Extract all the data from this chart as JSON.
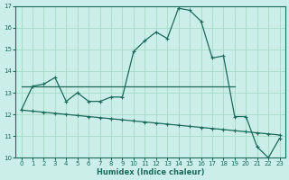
{
  "xlabel": "Humidex (Indice chaleur)",
  "bg_color": "#cceee8",
  "grid_color": "#aaddcc",
  "line_color": "#1a6b5a",
  "xlim": [
    -0.5,
    23.5
  ],
  "ylim": [
    10,
    17
  ],
  "yticks": [
    10,
    11,
    12,
    13,
    14,
    15,
    16,
    17
  ],
  "xticks": [
    0,
    1,
    2,
    3,
    4,
    5,
    6,
    7,
    8,
    9,
    10,
    11,
    12,
    13,
    14,
    15,
    16,
    17,
    18,
    19,
    20,
    21,
    22,
    23
  ],
  "series1_x": [
    0,
    1,
    2,
    3,
    4,
    5,
    6,
    7,
    8,
    9,
    10,
    11,
    12,
    13,
    14,
    15,
    16,
    17,
    18,
    19,
    20,
    21,
    22,
    23
  ],
  "series1_y": [
    12.2,
    13.3,
    13.4,
    13.7,
    12.6,
    13.0,
    12.6,
    12.6,
    12.8,
    12.8,
    14.9,
    15.4,
    15.8,
    15.5,
    16.9,
    16.8,
    16.3,
    14.6,
    14.7,
    11.9,
    11.9,
    10.5,
    10.0,
    10.9
  ],
  "series2_x": [
    0,
    19
  ],
  "series2_y": [
    13.3,
    13.3
  ],
  "series3_x": [
    0,
    1,
    2,
    3,
    4,
    5,
    6,
    7,
    8,
    9,
    10,
    11,
    12,
    13,
    14,
    15,
    16,
    17,
    18,
    19,
    20,
    21,
    22,
    23
  ],
  "series3_y": [
    12.2,
    12.15,
    12.1,
    12.05,
    12.0,
    11.95,
    11.9,
    11.85,
    11.8,
    11.75,
    11.7,
    11.65,
    11.6,
    11.55,
    11.5,
    11.45,
    11.4,
    11.35,
    11.3,
    11.25,
    11.2,
    11.15,
    11.1,
    11.05
  ]
}
